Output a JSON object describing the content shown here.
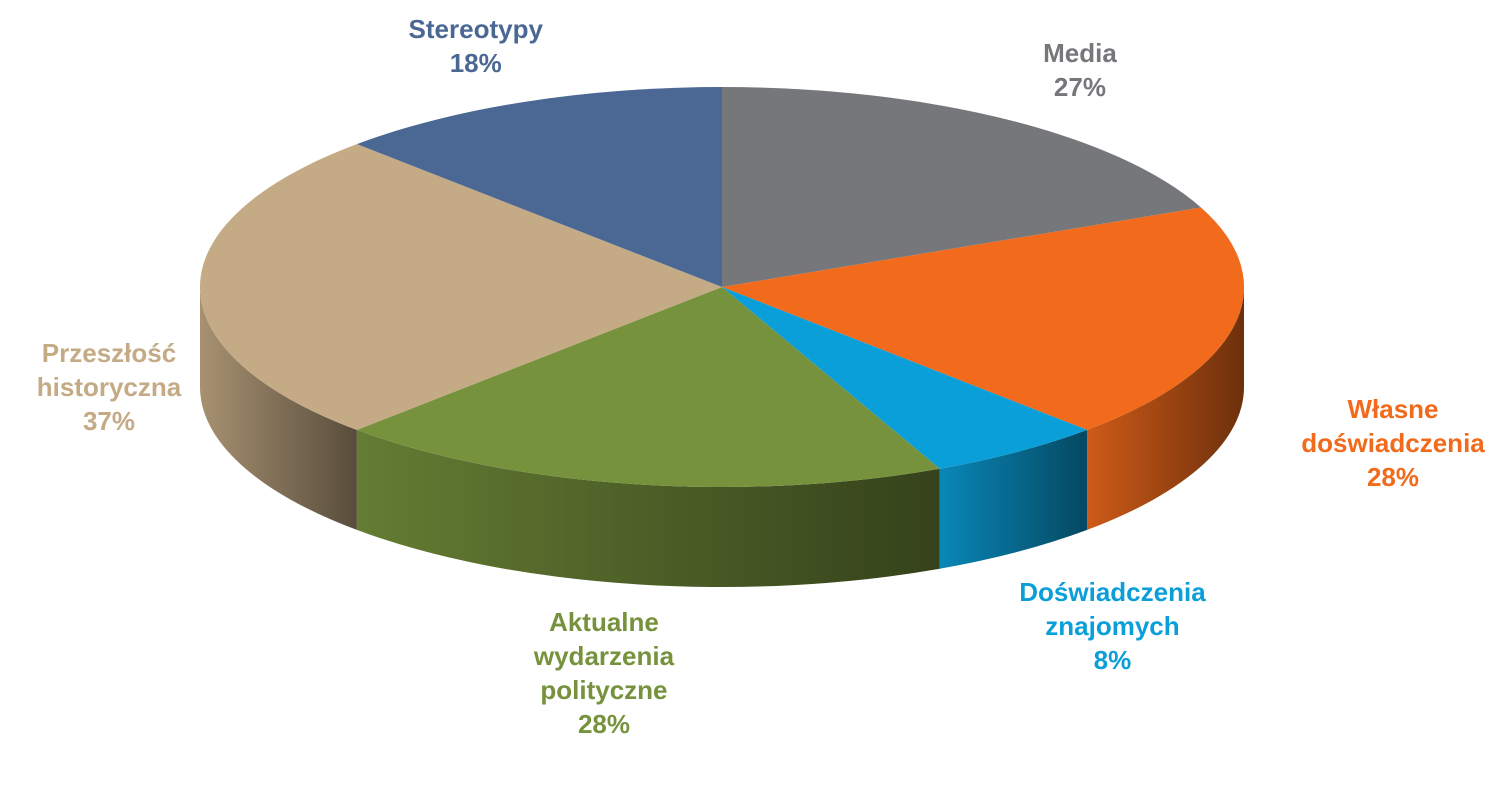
{
  "chart_data": {
    "type": "pie3d",
    "categories": [
      "Media",
      "Własne doświadczenia",
      "Doświadczenia znajomych",
      "Aktualne wydarzenia polityczne",
      "Przeszłość historyczna",
      "Stereotypy"
    ],
    "values": [
      27,
      28,
      8,
      28,
      37,
      18
    ],
    "value_labels": [
      "27%",
      "28%",
      "8%",
      "28%",
      "37%",
      "18%"
    ],
    "colors": [
      "#76777b",
      "#f26a1b",
      "#0a9fd8",
      "#76923c",
      "#c4aa85",
      "#4a6893"
    ]
  }
}
